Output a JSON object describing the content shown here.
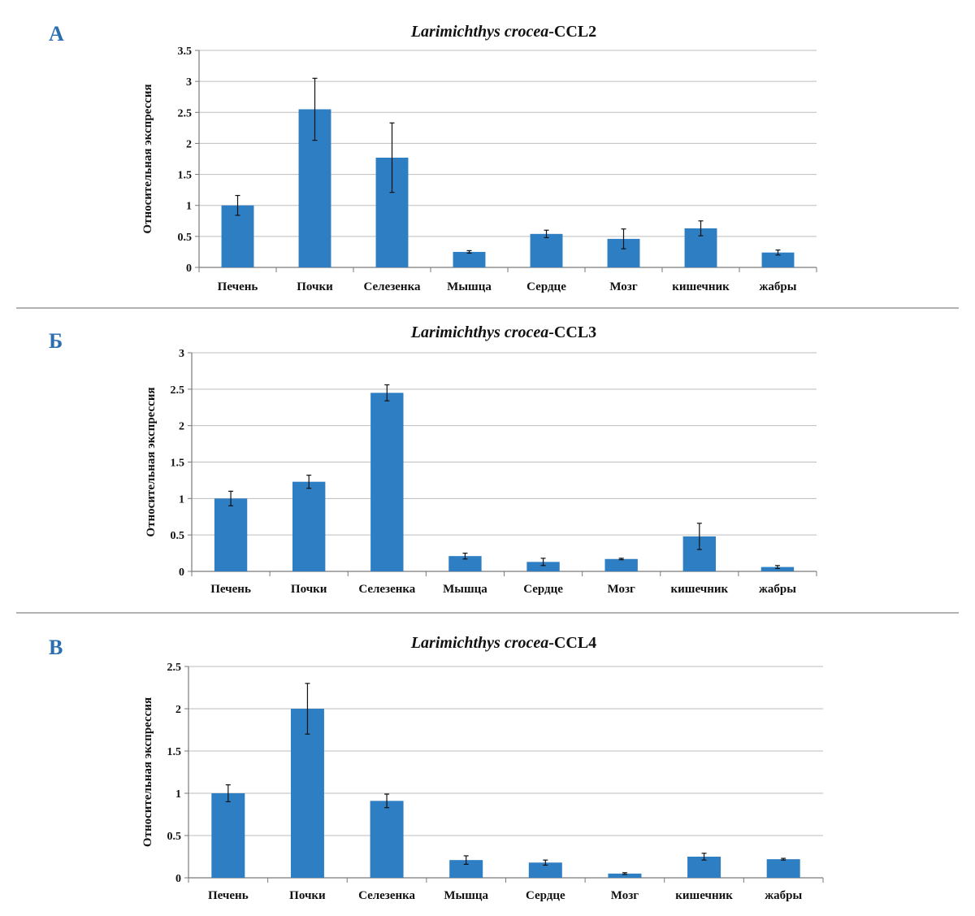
{
  "colors": {
    "bar": "#2e7ec4",
    "panel_letter": "#2a6fb0",
    "grid": "#bdbdbd",
    "axis": "#7a7a7a",
    "separator": "#9a9a9a"
  },
  "chart_data": [
    {
      "panel": "A",
      "type": "bar",
      "title_species": "Larimichthys crocea",
      "title_gene": "-CCL2",
      "ylabel": "Относительная экспрессия",
      "xlabel": "",
      "categories": [
        "Печень",
        "Почки",
        "Селезенка",
        "Мышца",
        "Сердце",
        "Мозг",
        "кишечник",
        "жабры"
      ],
      "values": [
        1.0,
        2.55,
        1.77,
        0.25,
        0.54,
        0.46,
        0.63,
        0.24
      ],
      "errors": [
        0.16,
        0.5,
        0.56,
        0.02,
        0.06,
        0.16,
        0.12,
        0.04
      ],
      "ylim": [
        0,
        3.5
      ],
      "yticks": [
        "0",
        "0.5",
        "1",
        "1.5",
        "2",
        "2.5",
        "3",
        "3.5"
      ],
      "grid": true
    },
    {
      "panel": "Б",
      "type": "bar",
      "title_species": "Larimichthys crocea",
      "title_gene": "-CCL3",
      "ylabel": "Относительная экспрессия",
      "xlabel": "",
      "categories": [
        "Печень",
        "Почки",
        "Селезенка",
        "Мышца",
        "Сердце",
        "Мозг",
        "кишечник",
        "жабры"
      ],
      "values": [
        1.0,
        1.23,
        2.45,
        0.21,
        0.13,
        0.17,
        0.48,
        0.06
      ],
      "errors": [
        0.1,
        0.09,
        0.11,
        0.04,
        0.05,
        0.01,
        0.18,
        0.02
      ],
      "ylim": [
        0,
        3
      ],
      "yticks": [
        "0",
        "0.5",
        "1",
        "1.5",
        "2",
        "2.5",
        "3"
      ],
      "grid": true
    },
    {
      "panel": "В",
      "type": "bar",
      "title_species": "Larimichthys crocea",
      "title_gene": "-CCL4",
      "ylabel": "Относительная экспрессия",
      "xlabel": "",
      "categories": [
        "Печень",
        "Почки",
        "Селезенка",
        "Мышца",
        "Сердце",
        "Мозг",
        "кишечник",
        "жабры"
      ],
      "values": [
        1.0,
        2.0,
        0.91,
        0.21,
        0.18,
        0.05,
        0.25,
        0.22
      ],
      "errors": [
        0.1,
        0.3,
        0.08,
        0.05,
        0.03,
        0.01,
        0.04,
        0.01
      ],
      "ylim": [
        0,
        2.5
      ],
      "yticks": [
        "0",
        "0.5",
        "1",
        "1.5",
        "2",
        "2.5"
      ],
      "grid": true
    }
  ]
}
